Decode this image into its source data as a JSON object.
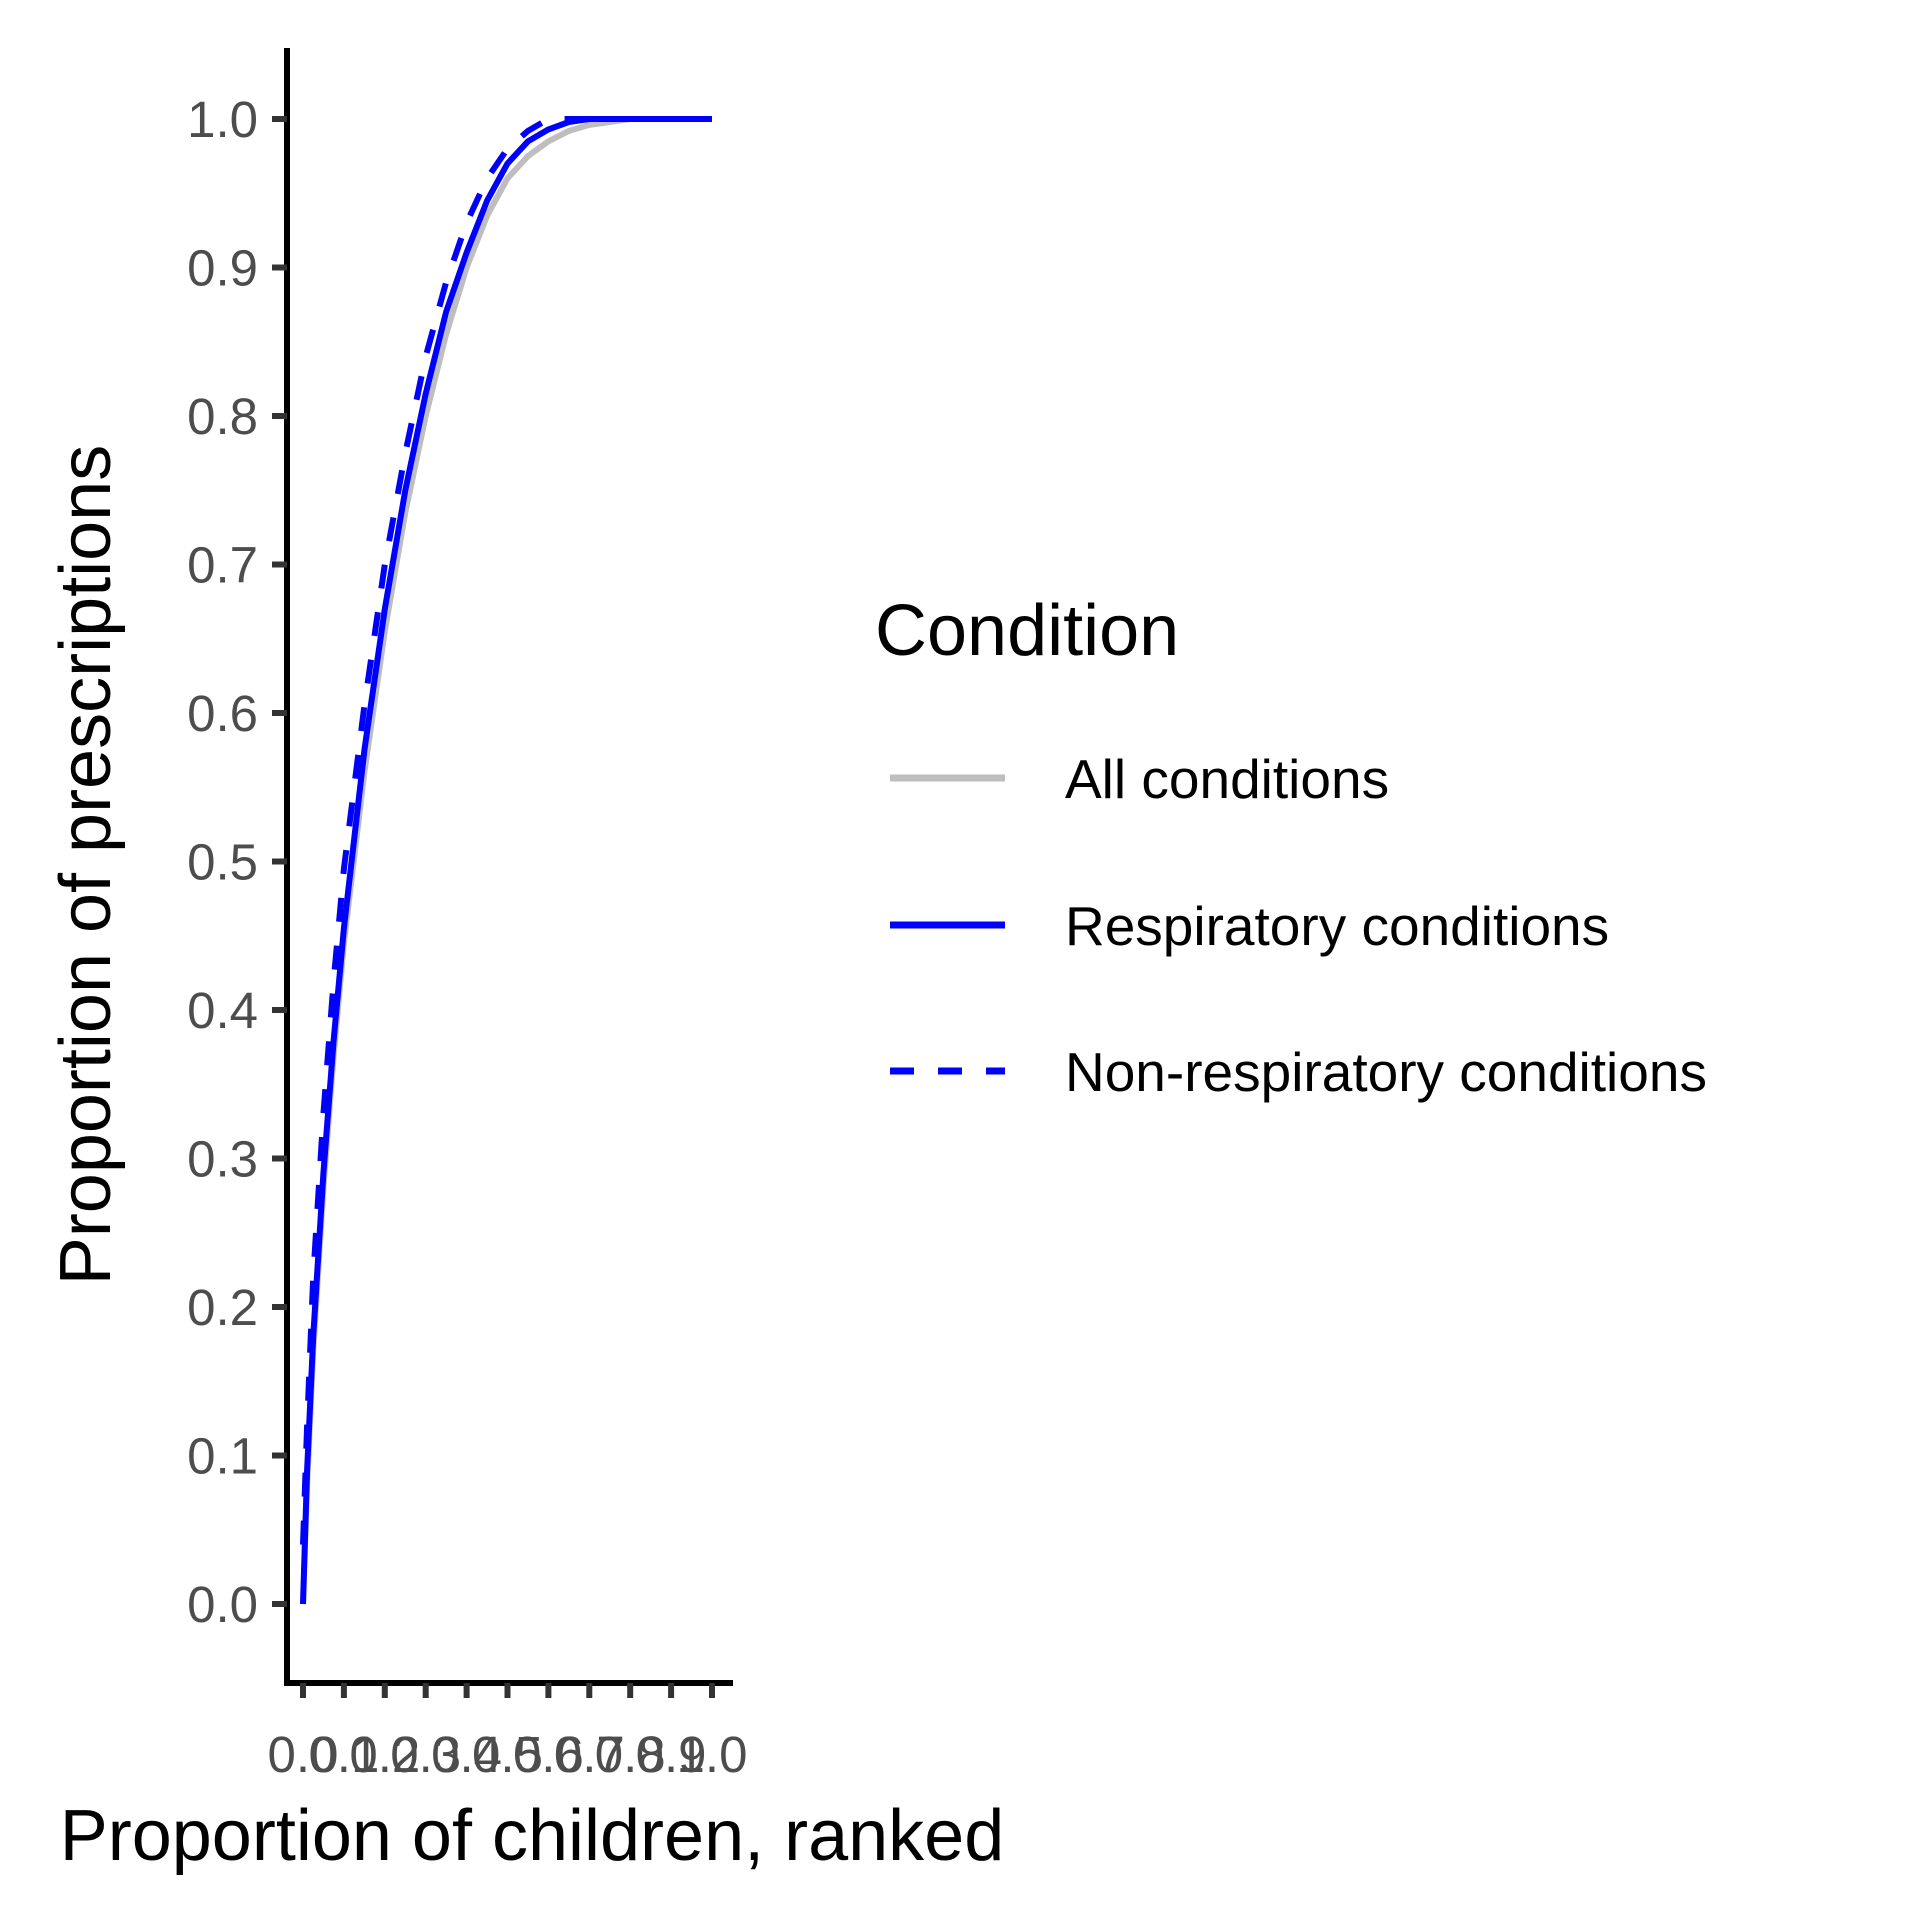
{
  "chart_data": {
    "type": "line",
    "xlabel": "Proportion of children, ranked",
    "ylabel": "Proportion of prescriptions",
    "xlim": [
      0,
      1
    ],
    "ylim": [
      0,
      1
    ],
    "x_ticks": [
      "0.0",
      "0.1",
      "0.2",
      "0.3",
      "0.4",
      "0.5",
      "0.6",
      "0.7",
      "0.8",
      "0.9",
      "1.0"
    ],
    "y_ticks": [
      "0.0",
      "0.1",
      "0.2",
      "0.3",
      "0.4",
      "0.5",
      "0.6",
      "0.7",
      "0.8",
      "0.9",
      "1.0"
    ],
    "grid": false,
    "legend": {
      "title": "Condition",
      "position": "right"
    },
    "series": [
      {
        "name": "All conditions",
        "color": "#bebebe",
        "dash": "solid",
        "x": [
          0,
          0.01,
          0.025,
          0.05,
          0.075,
          0.1,
          0.15,
          0.2,
          0.25,
          0.3,
          0.35,
          0.4,
          0.45,
          0.5,
          0.55,
          0.6,
          0.65,
          0.7,
          0.75,
          0.8,
          0.85,
          0.9,
          0.95,
          1.0
        ],
        "y": [
          0,
          0.08,
          0.17,
          0.28,
          0.37,
          0.445,
          0.56,
          0.655,
          0.735,
          0.8,
          0.855,
          0.9,
          0.935,
          0.96,
          0.975,
          0.985,
          0.992,
          0.996,
          0.998,
          1.0,
          1.0,
          1.0,
          1.0,
          1.0
        ]
      },
      {
        "name": "Respiratory conditions",
        "color": "#0000ff",
        "dash": "solid",
        "x": [
          0,
          0.01,
          0.025,
          0.05,
          0.075,
          0.1,
          0.15,
          0.2,
          0.25,
          0.3,
          0.35,
          0.4,
          0.45,
          0.5,
          0.55,
          0.6,
          0.65,
          0.7,
          0.75,
          0.8,
          0.85,
          0.9,
          0.95,
          1.0
        ],
        "y": [
          0,
          0.09,
          0.18,
          0.29,
          0.38,
          0.455,
          0.575,
          0.67,
          0.75,
          0.815,
          0.87,
          0.91,
          0.945,
          0.97,
          0.985,
          0.993,
          0.998,
          1.0,
          1.0,
          1.0,
          1.0,
          1.0,
          1.0,
          1.0
        ]
      },
      {
        "name": "Non-respiratory conditions",
        "color": "#0000ff",
        "dash": "dashed",
        "x": [
          0,
          0.01,
          0.025,
          0.05,
          0.075,
          0.1,
          0.15,
          0.2,
          0.25,
          0.3,
          0.35,
          0.4,
          0.45,
          0.5,
          0.55,
          0.6,
          0.65,
          0.7,
          0.75,
          0.8,
          0.85,
          0.9,
          0.95,
          1.0
        ],
        "y": [
          0.04,
          0.12,
          0.22,
          0.33,
          0.42,
          0.495,
          0.605,
          0.7,
          0.775,
          0.84,
          0.89,
          0.93,
          0.96,
          0.98,
          0.992,
          1.0,
          1.0,
          1.0,
          1.0,
          1.0,
          1.0,
          1.0,
          1.0,
          1.0
        ]
      }
    ]
  }
}
